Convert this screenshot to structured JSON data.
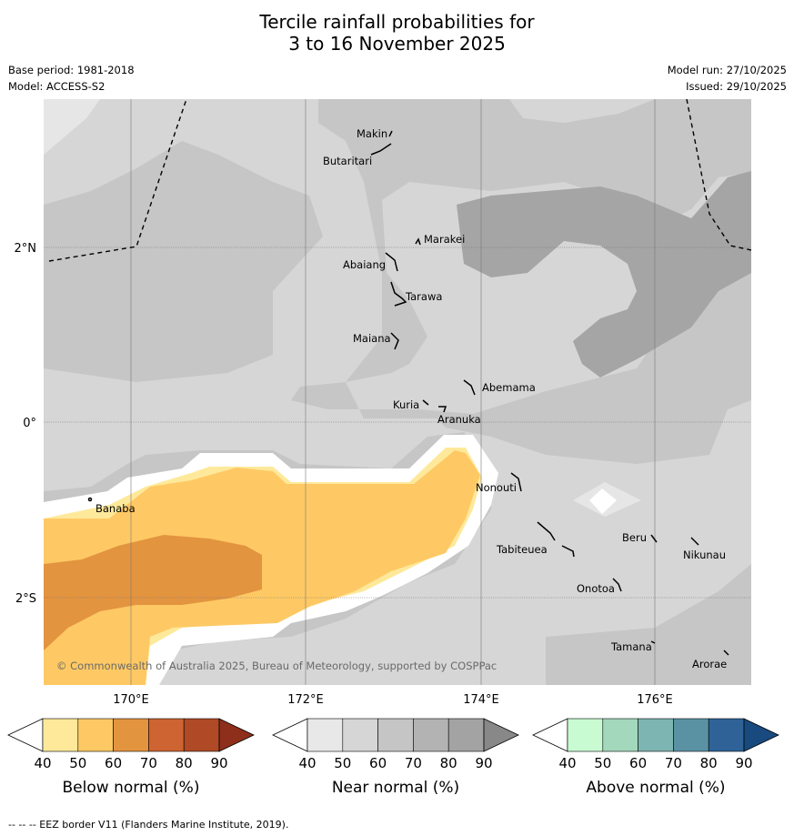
{
  "header": {
    "title_line1": "Tercile rainfall probabilities for",
    "title_line2": "3 to 16 November 2025",
    "base_period": "Base period: 1981-2018",
    "model": "Model: ACCESS-S2",
    "model_run": "Model run: 27/10/2025",
    "issued": "Issued: 29/10/2025"
  },
  "map": {
    "lat_labels": [
      "2°N",
      "0°",
      "2°S"
    ],
    "lon_labels": [
      "170°E",
      "172°E",
      "174°E",
      "176°E"
    ],
    "copyright": "© Commonwealth of Australia 2025, Bureau of Meteorology, supported by COSPPac",
    "islands": [
      "Makin",
      "Butaritari",
      "Marakei",
      "Abaiang",
      "Tarawa",
      "Maiana",
      "Abemama",
      "Kuria",
      "Aranuka",
      "Nonouti",
      "Banaba",
      "Tabiteuea",
      "Beru",
      "Nikunau",
      "Onotoa",
      "Tamana",
      "Arorae"
    ]
  },
  "colorbars": [
    {
      "label": "Below normal (%)",
      "ticks": [
        "40",
        "50",
        "60",
        "70",
        "80",
        "90"
      ],
      "colors": [
        "#ffffff",
        "#fee99b",
        "#fec964",
        "#e3943f",
        "#cd6432",
        "#b04a26",
        "#8d2f1a"
      ]
    },
    {
      "label": "Near normal (%)",
      "ticks": [
        "40",
        "50",
        "60",
        "70",
        "80",
        "90"
      ],
      "colors": [
        "#ffffff",
        "#e8e8e8",
        "#d6d6d6",
        "#c5c5c5",
        "#b3b3b3",
        "#a3a3a3",
        "#888888"
      ]
    },
    {
      "label": "Above normal (%)",
      "ticks": [
        "40",
        "50",
        "60",
        "70",
        "80",
        "90"
      ],
      "colors": [
        "#ffffff",
        "#c8fbd2",
        "#a3d8bc",
        "#7db5b2",
        "#5a92a3",
        "#2f6397",
        "#184a80"
      ]
    }
  ],
  "footer": "--  --  -- EEZ border V11 (Flanders Marine Institute, 2019)."
}
